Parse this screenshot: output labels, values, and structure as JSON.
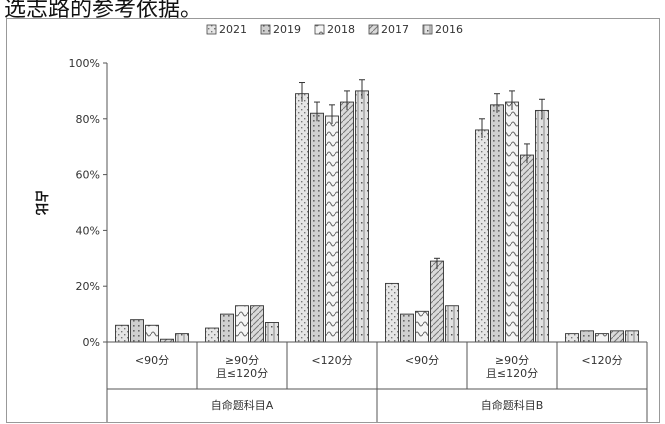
{
  "top_text": "选志路的参考依据。",
  "chart_data": {
    "type": "bar",
    "ylabel": "占比",
    "y_ticks": [
      "0%",
      "20%",
      "40%",
      "60%",
      "80%",
      "100%"
    ],
    "ylim": [
      0,
      100
    ],
    "legend_placement": "top-center",
    "groups": [
      {
        "label": "自命题科目A",
        "categories": [
          "<90分",
          "≥90分\n且≤120分",
          "<120分"
        ]
      },
      {
        "label": "自命题科目B",
        "categories": [
          "<90分",
          "≥90分\n且≤120分",
          "<120分"
        ]
      }
    ],
    "categories": [
      "<90分",
      "≥90分且≤120分",
      "<120分",
      "<90分",
      "≥90分且≤120分",
      "<120分"
    ],
    "series": [
      {
        "name": "2021",
        "values": [
          6,
          5,
          89,
          21,
          76,
          3
        ],
        "errors": [
          0,
          0,
          4,
          0,
          4,
          0
        ]
      },
      {
        "name": "2019",
        "values": [
          8,
          10,
          82,
          10,
          85,
          4
        ],
        "errors": [
          0,
          0,
          4,
          0,
          4,
          0
        ]
      },
      {
        "name": "2018",
        "values": [
          6,
          13,
          81,
          11,
          86,
          3
        ],
        "errors": [
          0,
          0,
          4,
          0,
          4,
          0
        ]
      },
      {
        "name": "2017",
        "values": [
          1,
          13,
          86,
          29,
          67,
          4
        ],
        "errors": [
          0,
          0,
          4,
          1,
          4,
          0
        ]
      },
      {
        "name": "2016",
        "values": [
          3,
          7,
          90,
          13,
          83,
          4
        ],
        "errors": [
          0,
          0,
          4,
          0,
          4,
          0
        ]
      }
    ]
  }
}
